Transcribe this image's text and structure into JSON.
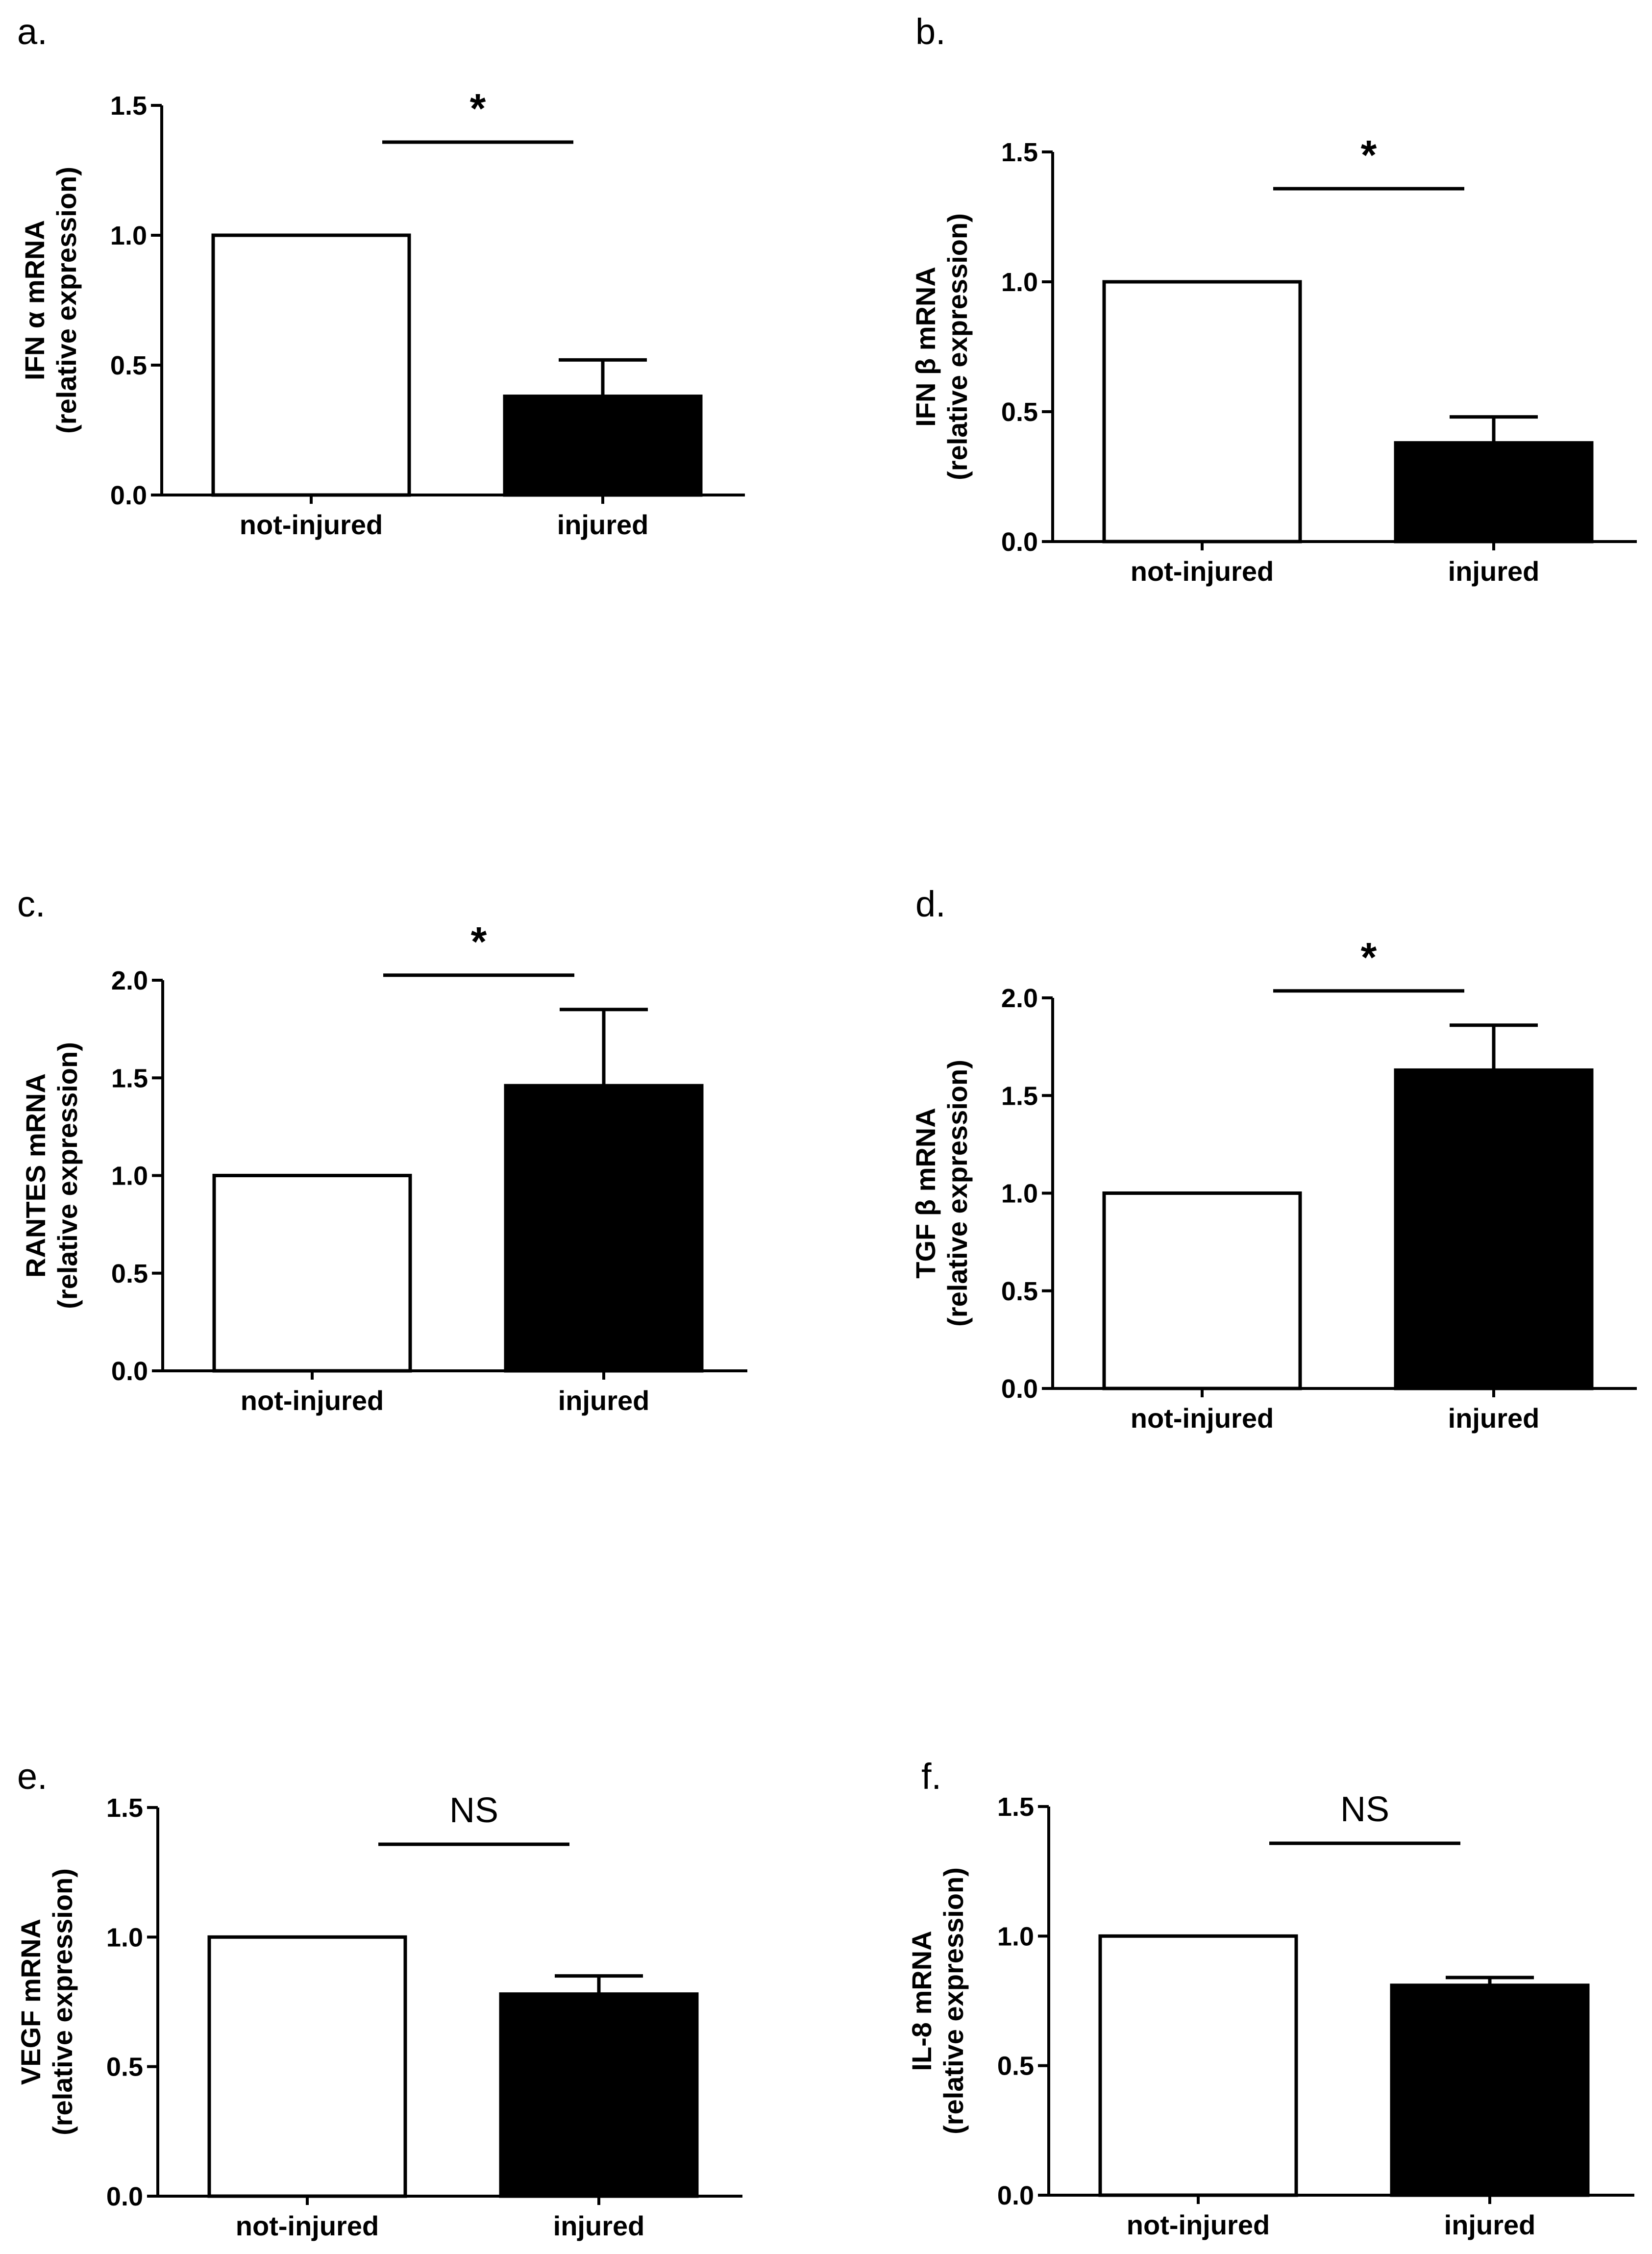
{
  "figure": {
    "description_free": true
  },
  "colors": {
    "control_fill": "#ffffff",
    "treated_fill": "#000000",
    "stroke": "#000000",
    "background": "#ffffff"
  },
  "chart_data": [
    {
      "panel_label": "a.",
      "type": "bar",
      "ylabel_main": "IFN α mRNA",
      "ylabel_sub": "(relative expression)",
      "categories": [
        "not-injured",
        "injured"
      ],
      "values": [
        1.0,
        0.38
      ],
      "errors": [
        0,
        0.14
      ],
      "ylim": [
        0,
        1.5
      ],
      "yticks": [
        0.0,
        0.5,
        1.0,
        1.5
      ],
      "tick_labels": [
        "0.0",
        "0.5",
        "1.0",
        "1.5"
      ],
      "significance": "*",
      "grid": false
    },
    {
      "panel_label": "b.",
      "type": "bar",
      "ylabel_main": "IFN β mRNA",
      "ylabel_sub": "(relative expression)",
      "categories": [
        "not-injured",
        "injured"
      ],
      "values": [
        1.0,
        0.38
      ],
      "errors": [
        0,
        0.1
      ],
      "ylim": [
        0,
        1.5
      ],
      "yticks": [
        0.0,
        0.5,
        1.0,
        1.5
      ],
      "tick_labels": [
        "0.0",
        "0.5",
        "1.0",
        "1.5"
      ],
      "significance": "*",
      "grid": false
    },
    {
      "panel_label": "c.",
      "type": "bar",
      "ylabel_main": "RANTES mRNA",
      "ylabel_sub": "(relative expression)",
      "categories": [
        "not-injured",
        "injured"
      ],
      "values": [
        1.0,
        1.46
      ],
      "errors": [
        0,
        0.39
      ],
      "ylim": [
        0,
        2.0
      ],
      "yticks": [
        0.0,
        0.5,
        1.0,
        1.5,
        2.0
      ],
      "tick_labels": [
        "0.0",
        "0.5",
        "1.0",
        "1.5",
        "2.0"
      ],
      "significance": "*",
      "grid": false
    },
    {
      "panel_label": "d.",
      "type": "bar",
      "ylabel_main": "TGF β mRNA",
      "ylabel_sub": "(relative expression)",
      "categories": [
        "not-injured",
        "injured"
      ],
      "values": [
        1.0,
        1.63
      ],
      "errors": [
        0,
        0.23
      ],
      "ylim": [
        0,
        2.0
      ],
      "yticks": [
        0.0,
        0.5,
        1.0,
        1.5,
        2.0
      ],
      "tick_labels": [
        "0.0",
        "0.5",
        "1.0",
        "1.5",
        "2.0"
      ],
      "significance": "*",
      "grid": false
    },
    {
      "panel_label": "e.",
      "type": "bar",
      "ylabel_main": "VEGF mRNA",
      "ylabel_sub": "(relative expression)",
      "categories": [
        "not-injured",
        "injured"
      ],
      "values": [
        1.0,
        0.78
      ],
      "errors": [
        0,
        0.07
      ],
      "ylim": [
        0,
        1.5
      ],
      "yticks": [
        0.0,
        0.5,
        1.0,
        1.5
      ],
      "tick_labels": [
        "0.0",
        "0.5",
        "1.0",
        "1.5"
      ],
      "significance": "NS",
      "grid": false
    },
    {
      "panel_label": "f.",
      "type": "bar",
      "ylabel_main": "IL-8 mRNA",
      "ylabel_sub": "(relative expression)",
      "categories": [
        "not-injured",
        "injured"
      ],
      "values": [
        1.0,
        0.81
      ],
      "errors": [
        0,
        0.03
      ],
      "ylim": [
        0,
        1.5
      ],
      "yticks": [
        0.0,
        0.5,
        1.0,
        1.5
      ],
      "tick_labels": [
        "0.0",
        "0.5",
        "1.0",
        "1.5"
      ],
      "significance": "NS",
      "grid": false
    }
  ]
}
